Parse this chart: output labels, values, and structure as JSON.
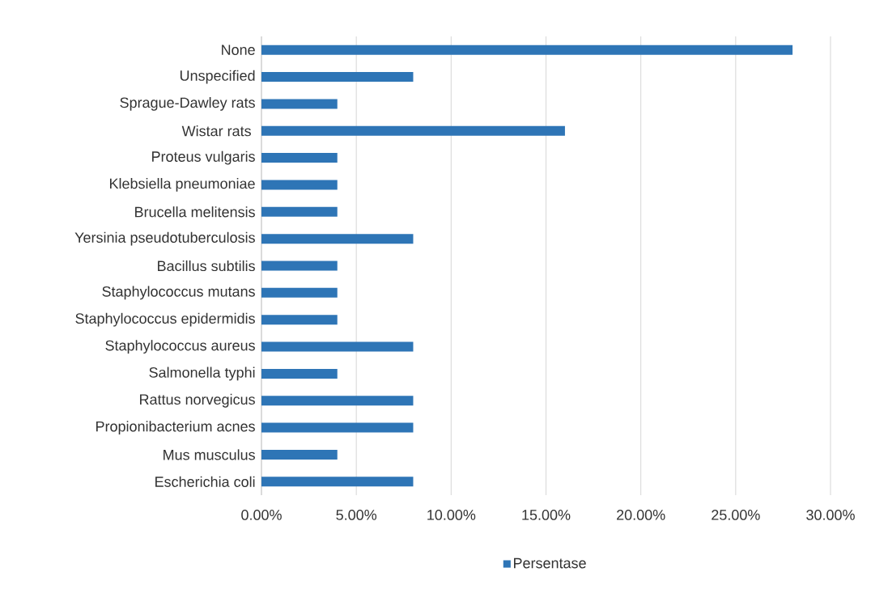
{
  "chart_data": {
    "type": "bar",
    "orientation": "horizontal",
    "categories": [
      "None",
      "Unspecified",
      "Sprague-Dawley rats",
      "Wistar rats ",
      "Proteus vulgaris",
      "Klebsiella pneumoniae",
      "Brucella melitensis",
      "Yersinia pseudotuberculosis",
      "Bacillus subtilis",
      "Staphylococcus mutans",
      "Staphylococcus epidermidis",
      "Staphylococcus aureus",
      "Salmonella typhi",
      "Rattus norvegicus",
      "Propionibacterium acnes",
      "Mus musculus",
      "Escherichia coli"
    ],
    "series": [
      {
        "name": "Persentase",
        "color": "#2e75b6",
        "values": [
          28,
          8,
          4,
          16,
          4,
          4,
          4,
          8,
          4,
          4,
          4,
          8,
          4,
          8,
          8,
          4,
          8
        ]
      }
    ],
    "xlim": [
      0,
      30
    ],
    "xticks": [
      {
        "value": 0,
        "label": "0.00%"
      },
      {
        "value": 5,
        "label": "5.00%"
      },
      {
        "value": 10,
        "label": "10.00%"
      },
      {
        "value": 15,
        "label": "15.00%"
      },
      {
        "value": 20,
        "label": "20.00%"
      },
      {
        "value": 25,
        "label": "25.00%"
      },
      {
        "value": 30,
        "label": "30.00%"
      }
    ],
    "grid": "x",
    "legend": "bottom"
  }
}
